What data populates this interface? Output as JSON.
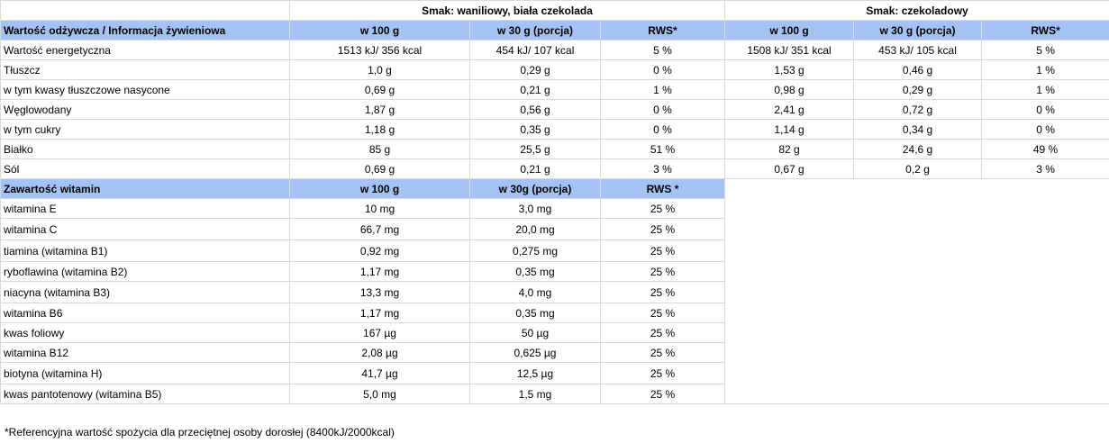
{
  "flavors": {
    "vanilla": "Smak: waniliowy, biała czekolada",
    "chocolate": "Smak: czekoladowy"
  },
  "nutrition_header": {
    "label": "Wartość odżywcza / Informacja żywieniowa",
    "per100": "w 100 g",
    "per30": "w 30 g (porcja)",
    "rws": "RWS*"
  },
  "nutrition_rows": [
    {
      "name": "Wartość energetyczna",
      "v100": "1513 kJ/ 356 kcal",
      "v30": "454 kJ/ 107 kcal",
      "vrws": "5 %",
      "c100": "1508 kJ/ 351 kcal",
      "c30": "453 kJ/ 105 kcal",
      "crws": "5 %"
    },
    {
      "name": "Tłuszcz",
      "v100": "1,0 g",
      "v30": "0,29 g",
      "vrws": "0 %",
      "c100": "1,53 g",
      "c30": "0,46 g",
      "crws": "1 %"
    },
    {
      "name": "w tym kwasy tłuszczowe nasycone",
      "v100": "0,69 g",
      "v30": "0,21 g",
      "vrws": "1 %",
      "c100": "0,98 g",
      "c30": "0,29 g",
      "crws": "1 %"
    },
    {
      "name": "Węglowodany",
      "v100": "1,87 g",
      "v30": "0,56 g",
      "vrws": "0 %",
      "c100": "2,41 g",
      "c30": "0,72 g",
      "crws": "0 %"
    },
    {
      "name": "w tym cukry",
      "v100": "1,18 g",
      "v30": "0,35 g",
      "vrws": "0 %",
      "c100": "1,14 g",
      "c30": "0,34 g",
      "crws": "0 %"
    },
    {
      "name": "Białko",
      "v100": "85 g",
      "v30": "25,5 g",
      "vrws": "51 %",
      "c100": "82 g",
      "c30": "24,6 g",
      "crws": "49 %"
    },
    {
      "name": "Sól",
      "v100": "0,69 g",
      "v30": "0,21 g",
      "vrws": "3 %",
      "c100": "0,67 g",
      "c30": "0,2 g",
      "crws": "3 %"
    }
  ],
  "vitamin_header": {
    "label": "Zawartość witamin",
    "per100": "w 100 g",
    "per30": "w 30g (porcja)",
    "rws": "RWS *"
  },
  "vitamin_rows": [
    {
      "name": "witamina E",
      "v100": "10 mg",
      "v30": "3,0 mg",
      "rws": "25 %"
    },
    {
      "name": "witamina C",
      "v100": "66,7 mg",
      "v30": "20,0 mg",
      "rws": "25 %"
    },
    {
      "name": "tiamina (witamina B1)",
      "v100": "0,92 mg",
      "v30": "0,275 mg",
      "rws": "25 %"
    },
    {
      "name": "ryboflawina (witamina B2)",
      "v100": "1,17 mg",
      "v30": "0,35 mg",
      "rws": "25 %"
    },
    {
      "name": "niacyna (witamina B3)",
      "v100": "13,3 mg",
      "v30": "4,0 mg",
      "rws": "25 %"
    },
    {
      "name": "witamina B6",
      "v100": "1,17 mg",
      "v30": "0,35 mg",
      "rws": "25 %"
    },
    {
      "name": "kwas foliowy",
      "v100": "167 µg",
      "v30": "50 µg",
      "rws": "25 %"
    },
    {
      "name": "witamina B12",
      "v100": "2,08 µg",
      "v30": "0,625 µg",
      "rws": "25 %"
    },
    {
      "name": "biotyna (witamina H)",
      "v100": "41,7 µg",
      "v30": "12,5 µg",
      "rws": "25 %"
    },
    {
      "name": "kwas pantotenowy (witamina B5)",
      "v100": "5,0 mg",
      "v30": "1,5 mg",
      "rws": "25 %"
    }
  ],
  "footnote": "*Referencyjna wartość spożycia dla przeciętnej osoby dorosłej (8400kJ/2000kcal)"
}
